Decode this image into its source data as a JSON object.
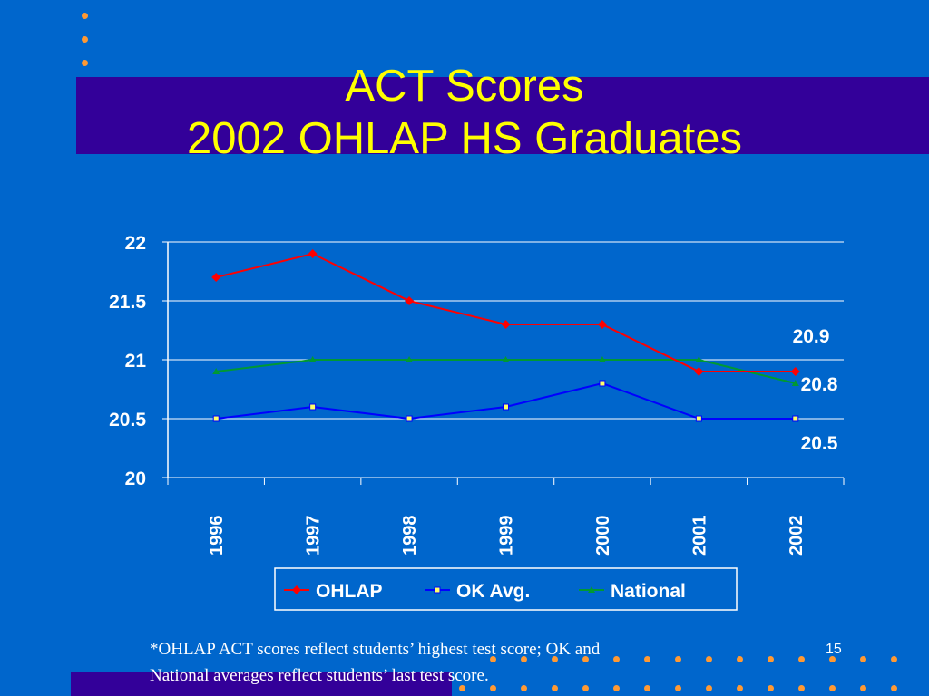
{
  "slide": {
    "title_line1": "ACT Scores",
    "title_line2": "2002 OHLAP HS Graduates",
    "footnote_line1": "*OHLAP ACT scores reflect students’ highest test score; OK and",
    "footnote_line2": "National averages reflect students’ last test score.",
    "page_number": "15"
  },
  "colors": {
    "background": "#0066CC",
    "band": "#330099",
    "title": "#FFFF00",
    "accent_dots": "#FF9933"
  },
  "chart_data": {
    "type": "line",
    "title": "",
    "xlabel": "",
    "ylabel": "",
    "categories": [
      "1996",
      "1997",
      "1998",
      "1999",
      "2000",
      "2001",
      "2002"
    ],
    "ylim": [
      20,
      22
    ],
    "yticks": [
      "20",
      "20.5",
      "21",
      "21.5",
      "22"
    ],
    "grid": true,
    "legend_position": "bottom",
    "series": [
      {
        "name": "OHLAP",
        "values": [
          21.7,
          21.9,
          21.5,
          21.3,
          21.3,
          20.9,
          20.9
        ],
        "color": "#FF0000",
        "marker": "diamond",
        "end_label": "20.9"
      },
      {
        "name": "OK Avg.",
        "values": [
          20.5,
          20.6,
          20.5,
          20.6,
          20.8,
          20.5,
          20.5
        ],
        "color": "#0000FF",
        "marker": "square",
        "end_label": "20.5"
      },
      {
        "name": "National",
        "values": [
          20.9,
          21.0,
          21.0,
          21.0,
          21.0,
          21.0,
          20.8
        ],
        "color": "#009933",
        "marker": "triangle",
        "end_label": "20.8"
      }
    ]
  }
}
